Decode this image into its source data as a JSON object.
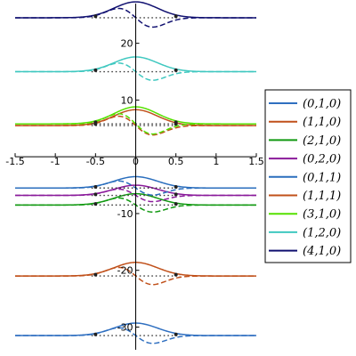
{
  "chart_data": {
    "type": "line",
    "title": "",
    "xlabel": "",
    "ylabel": "",
    "xlim": [
      -1.5,
      1.5
    ],
    "ylim": [
      -34,
      27
    ],
    "x_ticks": [
      -1.5,
      -1,
      -0.5,
      0,
      0.5,
      1,
      1.5
    ],
    "x_tick_labels": [
      "-1.5",
      "-1",
      "-0.5",
      "0",
      "0.5",
      "1",
      "1.5"
    ],
    "y_ticks": [
      -30,
      -20,
      -10,
      10,
      20
    ],
    "y_tick_labels": [
      "-30",
      "-20",
      "-10",
      "10",
      "20"
    ],
    "grid": false,
    "legend": "right",
    "markers_x": [
      -0.5,
      0.5
    ],
    "series": [
      {
        "name": "(0,1,0)",
        "color": "#2f6fc0",
        "energy": -31.5,
        "solid_amp": 2.2,
        "dashed_amp": 2.0
      },
      {
        "name": "(1,1,0)",
        "color": "#c0501a",
        "energy": -21.0,
        "solid_amp": 2.4,
        "dashed_amp": 2.2
      },
      {
        "name": "(2,1,0)",
        "color": "#119911",
        "energy": -8.5,
        "solid_amp": 2.0,
        "dashed_amp": 1.8
      },
      {
        "name": "(0,2,0)",
        "color": "#8a1a9a",
        "energy": -6.8,
        "solid_amp": 1.8,
        "dashed_amp": 1.6
      },
      {
        "name": "(0,1,1)",
        "color": "#2a6ebd",
        "energy": -5.5,
        "solid_amp": 2.0,
        "dashed_amp": 1.8
      },
      {
        "name": "(1,1,1)",
        "color": "#c0501a",
        "energy": 5.5,
        "solid_amp": 2.8,
        "dashed_amp": 2.4
      },
      {
        "name": "(3,1,0)",
        "color": "#55e000",
        "energy": 5.8,
        "solid_amp": 3.0,
        "dashed_amp": 2.6
      },
      {
        "name": "(1,2,0)",
        "color": "#40c8c0",
        "energy": 15.0,
        "solid_amp": 2.6,
        "dashed_amp": 2.2
      },
      {
        "name": "(4,1,0)",
        "color": "#101070",
        "energy": 24.5,
        "solid_amp": 2.8,
        "dashed_amp": 2.4
      }
    ]
  }
}
